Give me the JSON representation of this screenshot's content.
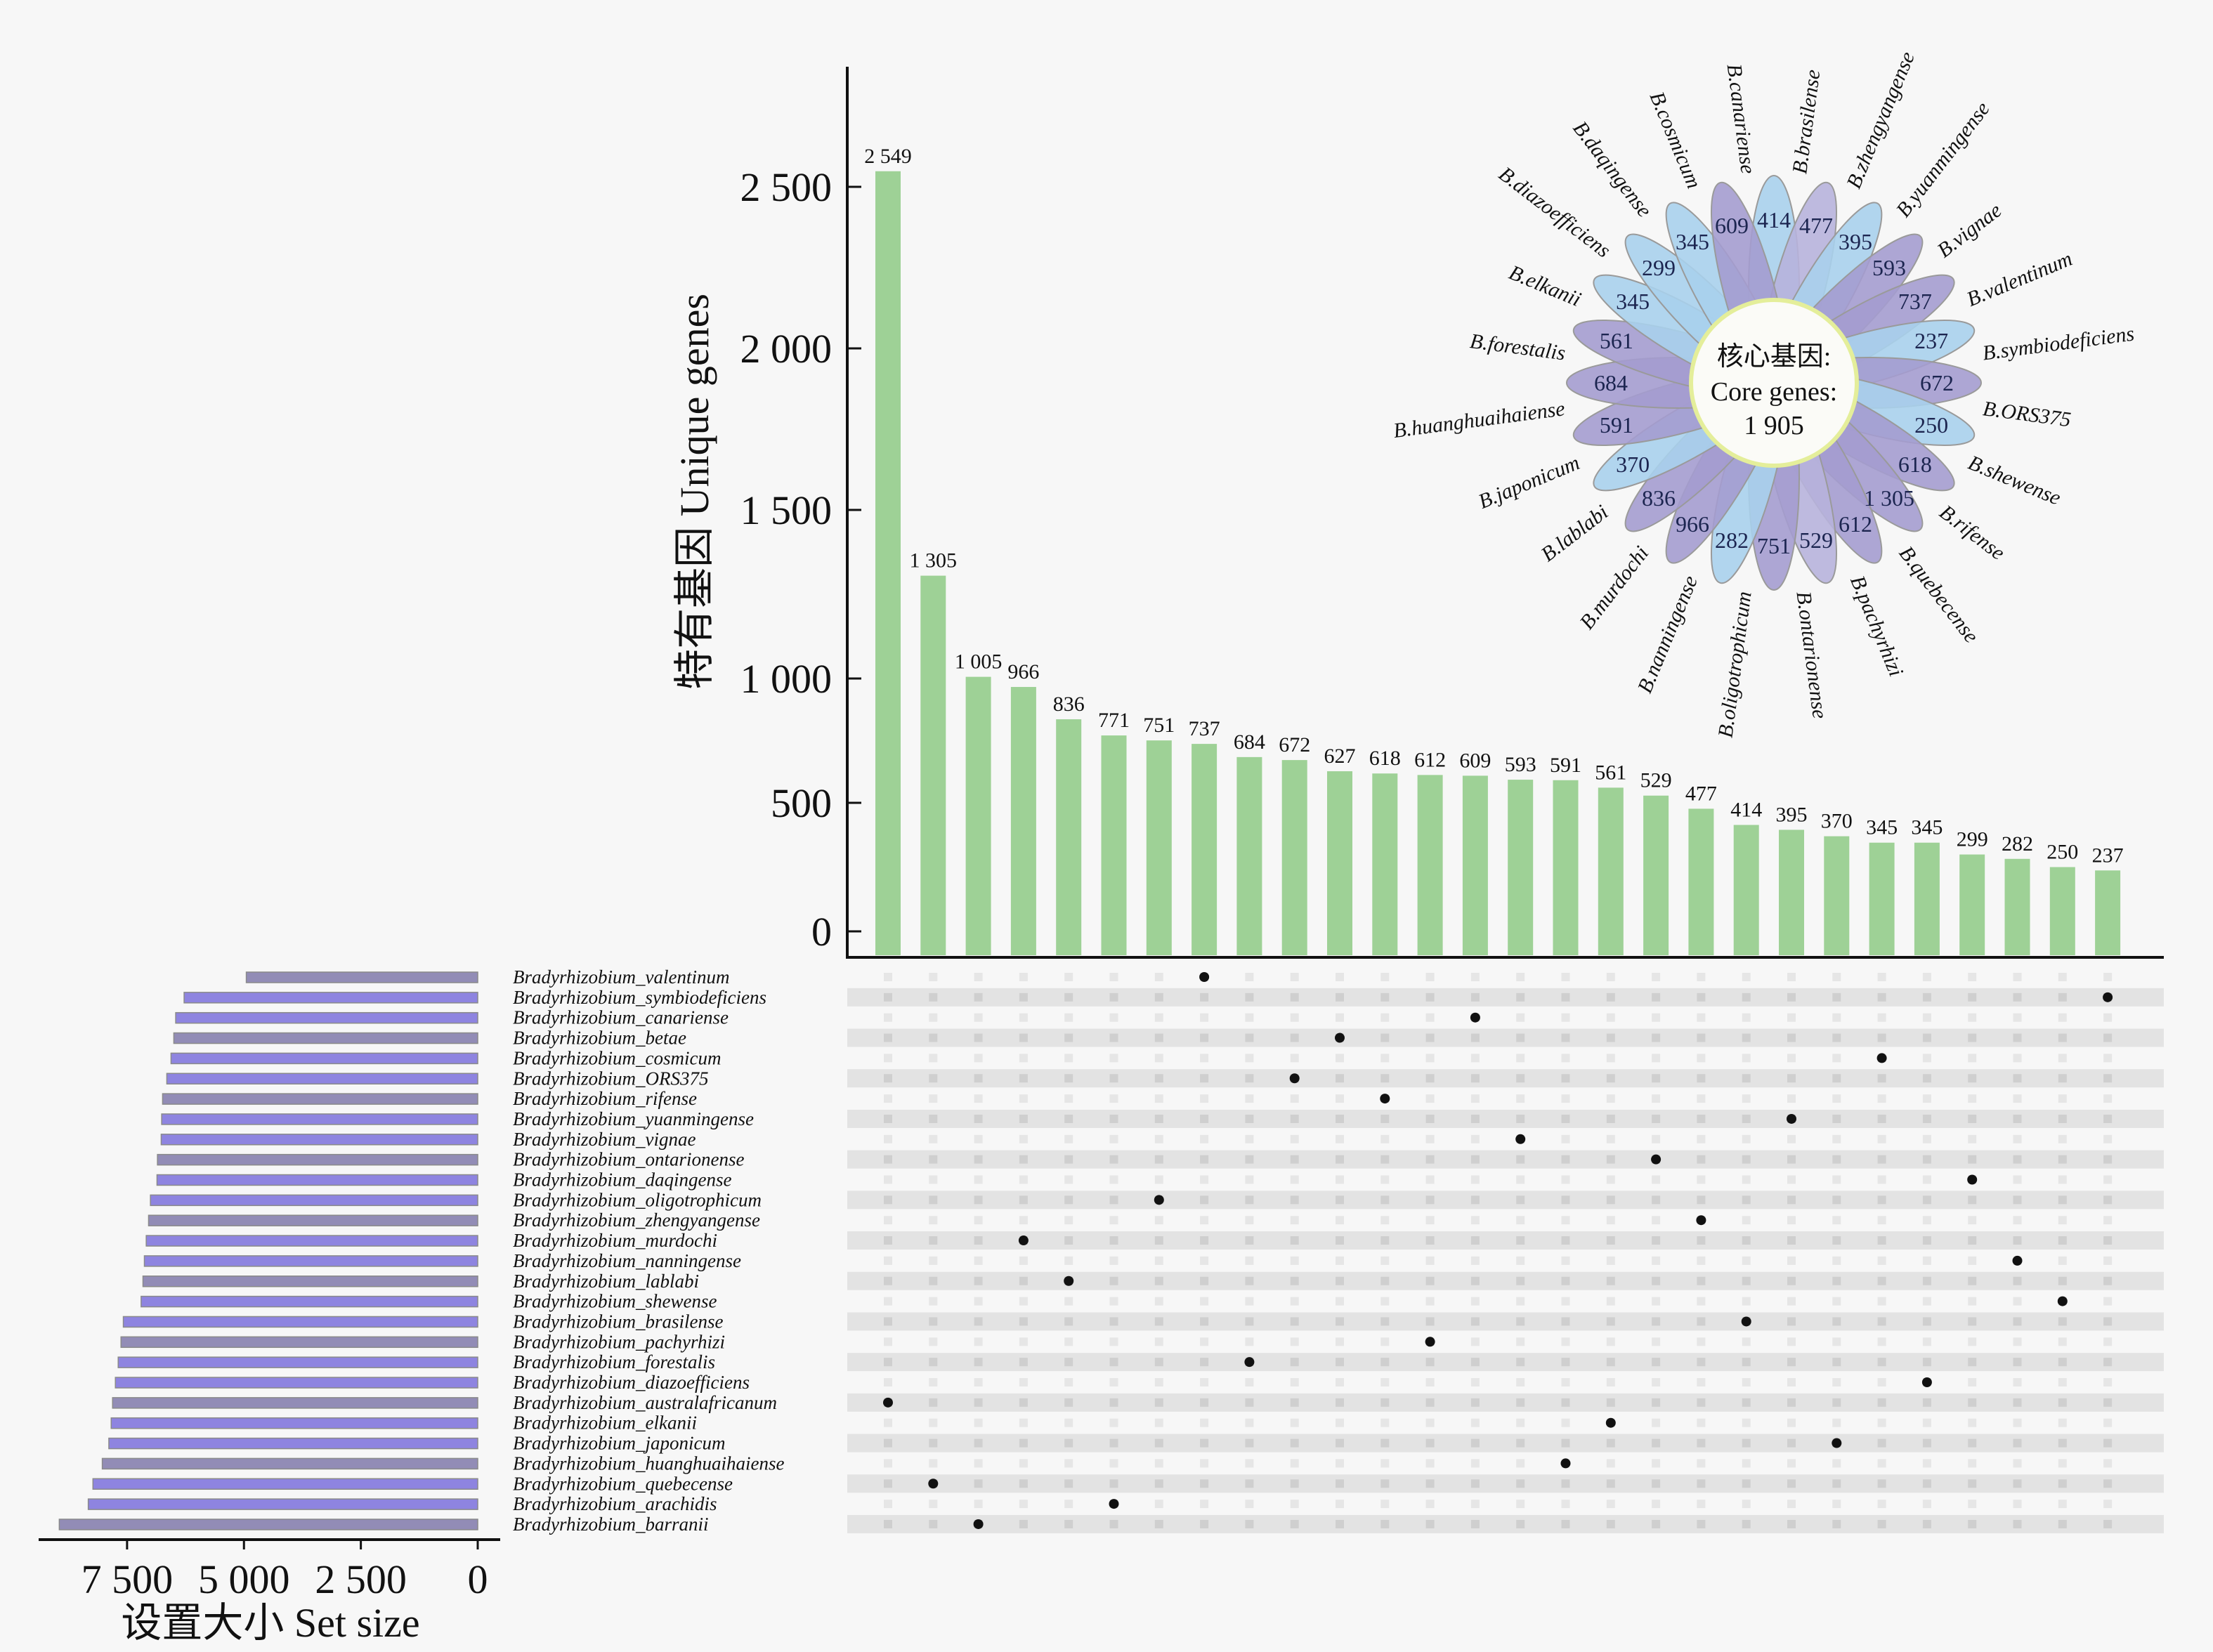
{
  "chart_data": [
    {
      "type": "bar",
      "name": "intersection-size",
      "title": "",
      "ylabel": "特有基因 Unique genes",
      "xlabel": "",
      "yticks": [
        0,
        500,
        1000,
        1500,
        2000,
        2500
      ],
      "ytick_labels": [
        "0",
        "500",
        "1 000",
        "1 500",
        "2 000",
        "2 500"
      ],
      "ylim": [
        0,
        2800
      ],
      "yscale": "sqrt-like",
      "bar_color": "#9ed196",
      "categories": [
        "australafricanum",
        "quebecense",
        "barranii",
        "murdochi",
        "lablabi",
        "arachidis",
        "oligotrophicum",
        "valentinum",
        "forestalis",
        "ORS375",
        "betae",
        "rifense",
        "pachyrhizi",
        "canariense",
        "vignae",
        "huanghuaihaiense",
        "elkanii",
        "ontarionense",
        "zhengyangense",
        "brasilense",
        "yuanmingense",
        "japonicum",
        "cosmicum",
        "diazoefficiens",
        "daqingense",
        "nanningense",
        "shewense",
        "symbiodeficiens"
      ],
      "values": [
        2549,
        1305,
        1005,
        966,
        836,
        771,
        751,
        737,
        684,
        672,
        627,
        618,
        612,
        609,
        593,
        591,
        561,
        529,
        477,
        414,
        395,
        370,
        345,
        345,
        299,
        282,
        250,
        237
      ],
      "value_labels": [
        "2 549",
        "1 305",
        "1 005",
        "966",
        "836",
        "771",
        "751",
        "737",
        "684",
        "672",
        "627",
        "618",
        "612",
        "609",
        "593",
        "591",
        "561",
        "529",
        "477",
        "414",
        "395",
        "370",
        "345",
        "345",
        "299",
        "282",
        "250",
        "237"
      ]
    },
    {
      "type": "bar",
      "name": "set-size",
      "orientation": "horizontal-reversed",
      "xlabel": "设置大小 Set size",
      "xticks": [
        7500,
        5000,
        2500,
        0
      ],
      "xtick_labels": [
        "7 500",
        "5 000",
        "2 500",
        "0"
      ],
      "xlim": [
        0,
        9500
      ],
      "colors": [
        "#8e84e0",
        "#928cb6"
      ],
      "sets": [
        {
          "label": "Bradyrhizobium_valentinum",
          "value": 4950
        },
        {
          "label": "Bradyrhizobium_symbiodeficiens",
          "value": 6280
        },
        {
          "label": "Bradyrhizobium_canariense",
          "value": 6460
        },
        {
          "label": "Bradyrhizobium_betae",
          "value": 6500
        },
        {
          "label": "Bradyrhizobium_cosmicum",
          "value": 6560
        },
        {
          "label": "Bradyrhizobium_ORS375",
          "value": 6650
        },
        {
          "label": "Bradyrhizobium_rifense",
          "value": 6740
        },
        {
          "label": "Bradyrhizobium_yuanmingense",
          "value": 6760
        },
        {
          "label": "Bradyrhizobium_vignae",
          "value": 6770
        },
        {
          "label": "Bradyrhizobium_ontarionense",
          "value": 6850
        },
        {
          "label": "Bradyrhizobium_daqingense",
          "value": 6860
        },
        {
          "label": "Bradyrhizobium_oligotrophicum",
          "value": 7000
        },
        {
          "label": "Bradyrhizobium_zhengyangense",
          "value": 7040
        },
        {
          "label": "Bradyrhizobium_murdochi",
          "value": 7090
        },
        {
          "label": "Bradyrhizobium_nanningense",
          "value": 7130
        },
        {
          "label": "Bradyrhizobium_lablabi",
          "value": 7160
        },
        {
          "label": "Bradyrhizobium_shewense",
          "value": 7200
        },
        {
          "label": "Bradyrhizobium_brasilense",
          "value": 7580
        },
        {
          "label": "Bradyrhizobium_pachyrhizi",
          "value": 7630
        },
        {
          "label": "Bradyrhizobium_forestalis",
          "value": 7690
        },
        {
          "label": "Bradyrhizobium_diazoefficiens",
          "value": 7750
        },
        {
          "label": "Bradyrhizobium_australafricanum",
          "value": 7810
        },
        {
          "label": "Bradyrhizobium_elkanii",
          "value": 7840
        },
        {
          "label": "Bradyrhizobium_japonicum",
          "value": 7890
        },
        {
          "label": "Bradyrhizobium_huanghuaihaiense",
          "value": 8030
        },
        {
          "label": "Bradyrhizobium_quebecense",
          "value": 8230
        },
        {
          "label": "Bradyrhizobium_arachidis",
          "value": 8330
        },
        {
          "label": "Bradyrhizobium_barranii",
          "value": 8950
        }
      ]
    },
    {
      "type": "matrix",
      "name": "intersection-matrix",
      "description": "each column has one dot at the species row it is unique to",
      "column_set_rows": [
        21,
        25,
        27,
        13,
        15,
        26,
        11,
        0,
        19,
        5,
        3,
        6,
        18,
        2,
        8,
        24,
        22,
        9,
        12,
        17,
        7,
        23,
        4,
        20,
        10,
        14,
        16,
        1
      ]
    },
    {
      "type": "flower",
      "name": "core-gene-flower",
      "core_label_cn": "核心基因:",
      "core_label_en": "Core genes:",
      "core_value": "1 905",
      "petal_colors": {
        "low": "#a9d0ec",
        "mid": "#b7b2dc",
        "high": "#a49ccf"
      },
      "petals": [
        {
          "label": "B.brasilense",
          "value": 414
        },
        {
          "label": "B.zhengyangense",
          "value": 477
        },
        {
          "label": "B.yuanmingense",
          "value": 395
        },
        {
          "label": "B.vignae",
          "value": 593
        },
        {
          "label": "B.valentinum",
          "value": 737
        },
        {
          "label": "B.symbiodeficiens",
          "value": 237
        },
        {
          "label": "B.ORS375",
          "value": 672
        },
        {
          "label": "B.shewense",
          "value": 250
        },
        {
          "label": "B.rifense",
          "value": 618
        },
        {
          "label": "B.quebecense",
          "value": 1305,
          "display": "1 305"
        },
        {
          "label": "B.pachyrhizi",
          "value": 612
        },
        {
          "label": "B.ontarionense",
          "value": 529
        },
        {
          "label": "B.oligotrophicum",
          "value": 751
        },
        {
          "label": "B.nanningense",
          "value": 282
        },
        {
          "label": "B.murdochi",
          "value": 966
        },
        {
          "label": "B.lablabi",
          "value": 836
        },
        {
          "label": "B.japonicum",
          "value": 370
        },
        {
          "label": "B.huanghuaihaiense",
          "value": 591
        },
        {
          "label": "B.forestalis",
          "value": 684
        },
        {
          "label": "B.elkanii",
          "value": 561
        },
        {
          "label": "B.diazoefficiens",
          "value": 345
        },
        {
          "label": "B.daqingense",
          "value": 299
        },
        {
          "label": "B.cosmicum",
          "value": 345
        },
        {
          "label": "B.canariense",
          "value": 609
        }
      ]
    }
  ]
}
